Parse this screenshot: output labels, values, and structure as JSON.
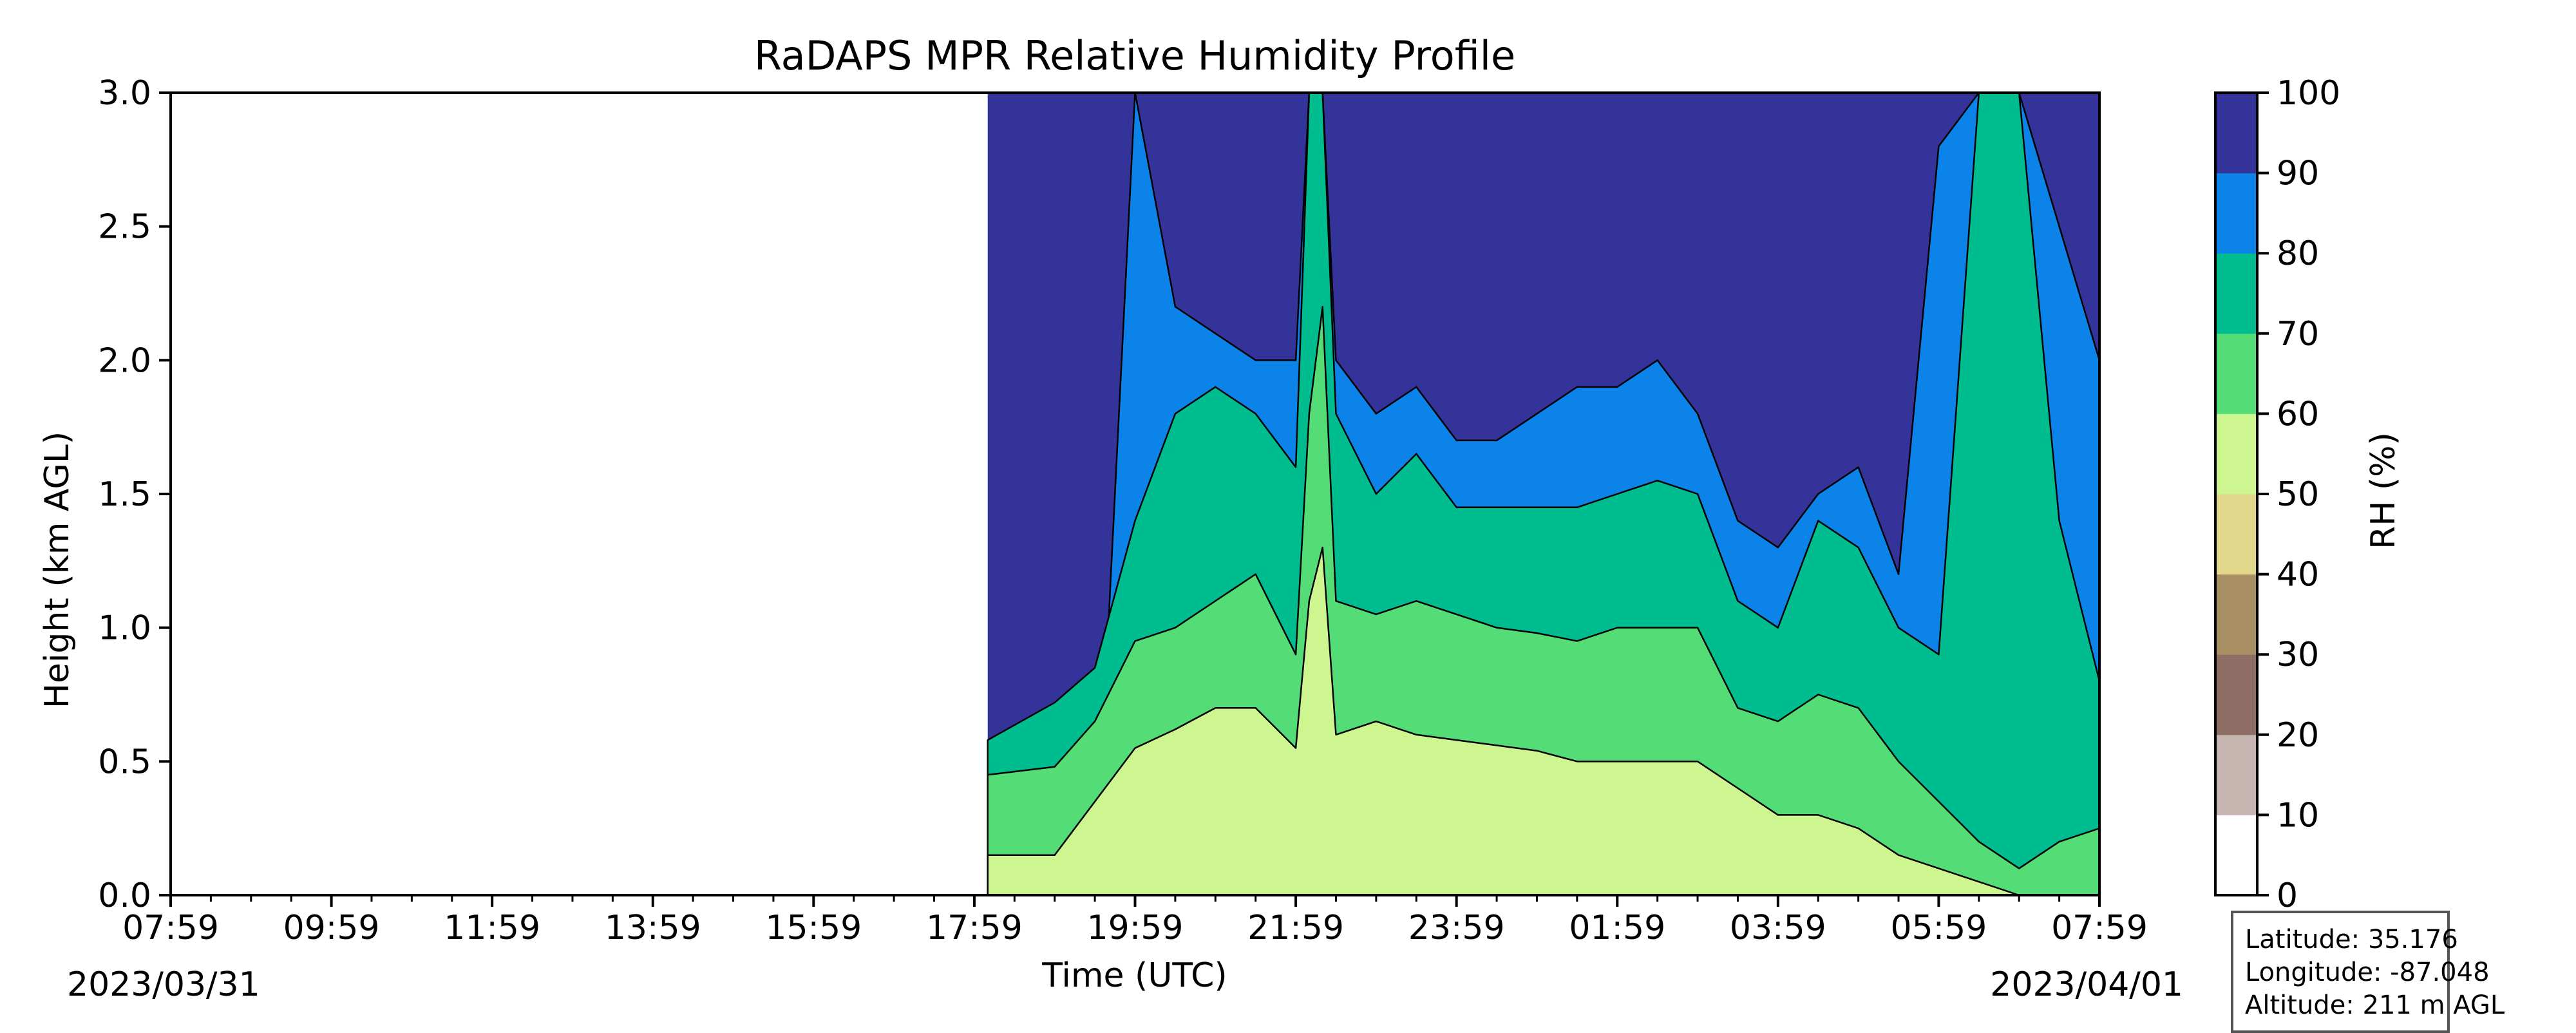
{
  "chart_data": {
    "type": "heatmap",
    "subtype": "filled-contour",
    "title": "RaDAPS MPR Relative Humidity Profile",
    "xlabel": "Time (UTC)",
    "ylabel": "Height (km AGL)",
    "ylim": [
      0,
      3.0
    ],
    "yticks": [
      "0.0",
      "0.5",
      "1.0",
      "1.5",
      "2.0",
      "2.5",
      "3.0"
    ],
    "xlim": [
      "2023-03-31 07:59",
      "2023-04-01 07:59"
    ],
    "xticks": [
      "07:59",
      "09:59",
      "11:59",
      "13:59",
      "15:59",
      "17:59",
      "19:59",
      "21:59",
      "23:59",
      "01:59",
      "03:59",
      "05:59",
      "07:59"
    ],
    "start_date_label": "2023/03/31",
    "end_date_label": "2023/04/01",
    "colorbar": {
      "label": "RH (%)",
      "levels": [
        0,
        10,
        20,
        30,
        40,
        50,
        60,
        70,
        80,
        90,
        100
      ],
      "tick_labels": [
        "0",
        "10",
        "20",
        "30",
        "40",
        "50",
        "60",
        "70",
        "80",
        "90",
        "100"
      ],
      "colors": [
        "#ffffff",
        "#c6b5b0",
        "#8e6e64",
        "#a88e63",
        "#e2d88b",
        "#cdf691",
        "#54dd77",
        "#00bd8f",
        "#0c83e9",
        "#333399"
      ]
    },
    "data_start": "2023-03-31 18:09",
    "times": [
      "2023-03-31 18:09",
      "2023-03-31 18:59",
      "2023-03-31 19:29",
      "2023-03-31 19:59",
      "2023-03-31 20:29",
      "2023-03-31 20:59",
      "2023-03-31 21:29",
      "2023-03-31 21:59",
      "2023-03-31 22:09",
      "2023-03-31 22:19",
      "2023-03-31 22:29",
      "2023-03-31 22:59",
      "2023-03-31 23:29",
      "2023-03-31 23:59",
      "2023-04-01 00:29",
      "2023-04-01 00:59",
      "2023-04-01 01:29",
      "2023-04-01 01:59",
      "2023-04-01 02:29",
      "2023-04-01 02:59",
      "2023-04-01 03:29",
      "2023-04-01 03:59",
      "2023-04-01 04:29",
      "2023-04-01 04:59",
      "2023-04-01 05:29",
      "2023-04-01 05:59",
      "2023-04-01 06:29",
      "2023-04-01 06:59",
      "2023-04-01 07:29",
      "2023-04-01 07:59"
    ],
    "contour_boundaries_km": [
      {
        "rh": 60,
        "heights": [
          0.15,
          0.15,
          0.35,
          0.55,
          0.62,
          0.7,
          0.7,
          0.55,
          1.1,
          1.3,
          0.6,
          0.65,
          0.6,
          0.58,
          0.56,
          0.54,
          0.5,
          0.5,
          0.5,
          0.5,
          0.4,
          0.3,
          0.3,
          0.25,
          0.15,
          0.1,
          0.05,
          0.0,
          0.0,
          0.0
        ]
      },
      {
        "rh": 70,
        "heights": [
          0.45,
          0.48,
          0.65,
          0.95,
          1.0,
          1.1,
          1.2,
          0.9,
          1.8,
          2.2,
          1.1,
          1.05,
          1.1,
          1.05,
          1.0,
          0.98,
          0.95,
          1.0,
          1.0,
          1.0,
          0.7,
          0.65,
          0.75,
          0.7,
          0.5,
          0.35,
          0.2,
          0.1,
          0.2,
          0.25
        ]
      },
      {
        "rh": 80,
        "heights": [
          0.58,
          0.72,
          0.85,
          1.4,
          1.8,
          1.9,
          1.8,
          1.6,
          3.0,
          3.0,
          1.8,
          1.5,
          1.65,
          1.45,
          1.45,
          1.45,
          1.45,
          1.5,
          1.55,
          1.5,
          1.1,
          1.0,
          1.4,
          1.3,
          1.0,
          0.9,
          3.0,
          3.0,
          1.4,
          0.8
        ]
      },
      {
        "rh": 90,
        "heights": [
          0.0,
          0.0,
          0.0,
          3.0,
          2.2,
          2.1,
          2.0,
          2.0,
          3.0,
          3.0,
          2.0,
          1.8,
          1.9,
          1.7,
          1.7,
          1.8,
          1.9,
          1.9,
          2.0,
          1.8,
          1.4,
          1.3,
          1.5,
          1.6,
          1.2,
          2.8,
          3.0,
          3.0,
          2.5,
          2.0
        ]
      }
    ]
  },
  "info": {
    "latitude": "Latitude: 35.176",
    "longitude": "Longitude: -87.048",
    "altitude": "Altitude: 211 m AGL"
  }
}
